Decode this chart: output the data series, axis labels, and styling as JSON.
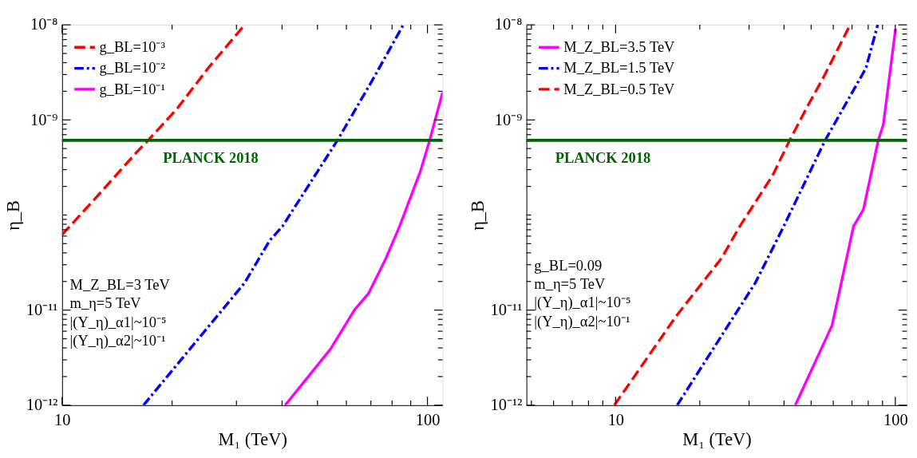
{
  "chart_data": [
    {
      "type": "line",
      "xlabel": "M₁ (TeV)",
      "ylabel": "η_B",
      "log": "xy",
      "grid": false,
      "legend": "top left",
      "xlim": [
        10,
        110
      ],
      "ylim": [
        1e-12,
        1e-08
      ],
      "xticks": [
        10,
        {
          "value": 20,
          "label": null
        },
        {
          "value": 30,
          "label": null
        },
        {
          "value": 40,
          "label": null
        },
        {
          "value": 50,
          "label": null
        },
        {
          "value": 60,
          "label": null
        },
        {
          "value": 70,
          "label": null
        },
        {
          "value": 80,
          "label": null
        },
        {
          "value": 90,
          "label": null
        },
        100
      ],
      "yticks": [
        {
          "value": 1e-12,
          "label": "10⁻¹²"
        },
        {
          "value": 2e-12,
          "label": null
        },
        {
          "value": 3e-12,
          "label": null
        },
        {
          "value": 4e-12,
          "label": null
        },
        {
          "value": 5e-12,
          "label": null
        },
        {
          "value": 6e-12,
          "label": null
        },
        {
          "value": 7e-12,
          "label": null
        },
        {
          "value": 8e-12,
          "label": null
        },
        {
          "value": 9e-12,
          "label": null
        },
        {
          "value": 1e-11,
          "label": "10⁻¹¹"
        },
        {
          "value": 2e-11,
          "label": null
        },
        {
          "value": 3e-11,
          "label": null
        },
        {
          "value": 4e-11,
          "label": null
        },
        {
          "value": 5e-11,
          "label": null
        },
        {
          "value": 6e-11,
          "label": null
        },
        {
          "value": 7e-11,
          "label": null
        },
        {
          "value": 8e-11,
          "label": null
        },
        {
          "value": 9e-11,
          "label": null
        },
        {
          "value": 1e-10,
          "label": null
        },
        {
          "value": 2e-10,
          "label": null
        },
        {
          "value": 3e-10,
          "label": null
        },
        {
          "value": 4e-10,
          "label": null
        },
        {
          "value": 5e-10,
          "label": null
        },
        {
          "value": 6e-10,
          "label": null
        },
        {
          "value": 7e-10,
          "label": null
        },
        {
          "value": 8e-10,
          "label": null
        },
        {
          "value": 9e-10,
          "label": null
        },
        {
          "value": 1e-09,
          "label": "10⁻⁹"
        },
        {
          "value": 2e-09,
          "label": null
        },
        {
          "value": 3e-09,
          "label": null
        },
        {
          "value": 4e-09,
          "label": null
        },
        {
          "value": 5e-09,
          "label": null
        },
        {
          "value": 6e-09,
          "label": null
        },
        {
          "value": 7e-09,
          "label": null
        },
        {
          "value": 8e-09,
          "label": null
        },
        {
          "value": 9e-09,
          "label": null
        },
        {
          "value": 1e-08,
          "label": "10⁻⁸"
        }
      ],
      "series": [
        {
          "name": "g_BL=10⁻³",
          "color": "#ff0000",
          "line_style": "dashed",
          "x": [
            10,
            12.3,
            16.1,
            17.2,
            20.6,
            25.1,
            31.6
          ],
          "values": [
            6.2e-11,
            1.48e-10,
            4.7e-10,
            6.1e-10,
            1.3e-09,
            3.5e-09,
            1e-08
          ]
        },
        {
          "name": "g_BL=10⁻²",
          "color": "#0000ff",
          "line_style": "dashdot",
          "x": [
            16.7,
            31.6,
            37,
            40.1,
            56.7,
            70.2,
            85.9
          ],
          "values": [
            1e-12,
            1.94e-11,
            5.4e-11,
            7.6e-11,
            6.1e-10,
            2.5e-09,
            1e-08
          ]
        },
        {
          "name": "g_BL=10⁻¹",
          "color": "#ff00ff",
          "line_style": "solid",
          "x": [
            40.8,
            54.3,
            63.1,
            69,
            76.7,
            83.9,
            95.7,
            101.4,
            110
          ],
          "values": [
            1e-12,
            3.9e-12,
            1e-11,
            1.5e-11,
            3.4e-11,
            7.6e-11,
            2.9e-10,
            6.1e-10,
            1.94e-09
          ]
        }
      ],
      "ref_lines": [
        {
          "axis": "y",
          "value": 6.1e-10,
          "label": "PLANCK 2018",
          "color": "#006400"
        }
      ],
      "annotations": [
        "M_Z_BL=3 TeV",
        "m_η=5 TeV",
        "|(Y_η)_α1|~10⁻⁵",
        "|(Y_η)_α2|~10⁻¹"
      ]
    },
    {
      "type": "line",
      "xlabel": "M₁ (TeV)",
      "ylabel": "η_B",
      "log": "xy",
      "grid": false,
      "legend": "top left",
      "xlim": [
        4.8,
        110
      ],
      "ylim": [
        1e-12,
        1e-08
      ],
      "xticks": [
        {
          "value": 5,
          "label": null
        },
        {
          "value": 6,
          "label": null
        },
        {
          "value": 7,
          "label": null
        },
        {
          "value": 8,
          "label": null
        },
        {
          "value": 9,
          "label": null
        },
        10,
        {
          "value": 20,
          "label": null
        },
        {
          "value": 30,
          "label": null
        },
        {
          "value": 40,
          "label": null
        },
        {
          "value": 50,
          "label": null
        },
        {
          "value": 60,
          "label": null
        },
        {
          "value": 70,
          "label": null
        },
        {
          "value": 80,
          "label": null
        },
        {
          "value": 90,
          "label": null
        },
        100
      ],
      "yticks": [
        {
          "value": 1e-12,
          "label": "10⁻¹²"
        },
        {
          "value": 2e-12,
          "label": null
        },
        {
          "value": 3e-12,
          "label": null
        },
        {
          "value": 4e-12,
          "label": null
        },
        {
          "value": 5e-12,
          "label": null
        },
        {
          "value": 6e-12,
          "label": null
        },
        {
          "value": 7e-12,
          "label": null
        },
        {
          "value": 8e-12,
          "label": null
        },
        {
          "value": 9e-12,
          "label": null
        },
        {
          "value": 1e-11,
          "label": "10⁻¹¹"
        },
        {
          "value": 2e-11,
          "label": null
        },
        {
          "value": 3e-11,
          "label": null
        },
        {
          "value": 4e-11,
          "label": null
        },
        {
          "value": 5e-11,
          "label": null
        },
        {
          "value": 6e-11,
          "label": null
        },
        {
          "value": 7e-11,
          "label": null
        },
        {
          "value": 8e-11,
          "label": null
        },
        {
          "value": 9e-11,
          "label": null
        },
        {
          "value": 1e-10,
          "label": null
        },
        {
          "value": 2e-10,
          "label": null
        },
        {
          "value": 3e-10,
          "label": null
        },
        {
          "value": 4e-10,
          "label": null
        },
        {
          "value": 5e-10,
          "label": null
        },
        {
          "value": 6e-10,
          "label": null
        },
        {
          "value": 7e-10,
          "label": null
        },
        {
          "value": 8e-10,
          "label": null
        },
        {
          "value": 9e-10,
          "label": null
        },
        {
          "value": 1e-09,
          "label": "10⁻⁹"
        },
        {
          "value": 2e-09,
          "label": null
        },
        {
          "value": 3e-09,
          "label": null
        },
        {
          "value": 4e-09,
          "label": null
        },
        {
          "value": 5e-09,
          "label": null
        },
        {
          "value": 6e-09,
          "label": null
        },
        {
          "value": 7e-09,
          "label": null
        },
        {
          "value": 8e-09,
          "label": null
        },
        {
          "value": 9e-09,
          "label": null
        },
        {
          "value": 1e-08,
          "label": "10⁻⁸"
        }
      ],
      "series": [
        {
          "name": "M_Z_BL=3.5 TeV",
          "color": "#ff00ff",
          "line_style": "solid",
          "x": [
            43.9,
            49.3,
            59.4,
            70.9,
            76.9,
            86.9,
            90.6,
            100.2
          ],
          "values": [
            1e-12,
            2.1e-12,
            6.9e-12,
            7.6e-11,
            1.14e-10,
            6.1e-10,
            8.9e-10,
            9.1e-09
          ]
        },
        {
          "name": "M_Z_BL=1.5 TeV",
          "color": "#0000ff",
          "line_style": "dashdot",
          "x": [
            16.6,
            31.6,
            39.9,
            56.1,
            78.5,
            86.5
          ],
          "values": [
            1e-12,
            1.94e-11,
            7.6e-11,
            6.1e-10,
            3.5e-09,
            1e-08
          ]
        },
        {
          "name": "M_Z_BL=0.5 TeV",
          "color": "#ff0000",
          "line_style": "dashed",
          "x": [
            9.9,
            16.4,
            23.9,
            27.8,
            36.4,
            41.9,
            48.2,
            55.5,
            68.1
          ],
          "values": [
            1e-12,
            8.5e-12,
            3.5e-11,
            7.6e-11,
            2.6e-10,
            6.1e-10,
            1.34e-09,
            2.85e-09,
            9.3e-09
          ]
        }
      ],
      "ref_lines": [
        {
          "axis": "y",
          "value": 6.1e-10,
          "label": "PLANCK 2018",
          "color": "#006400"
        }
      ],
      "annotations": [
        "g_BL=0.09",
        "m_η=5 TeV",
        "|(Y_η)_α1|~10⁻⁵",
        "|(Y_η)_α2|~10⁻¹"
      ]
    }
  ]
}
